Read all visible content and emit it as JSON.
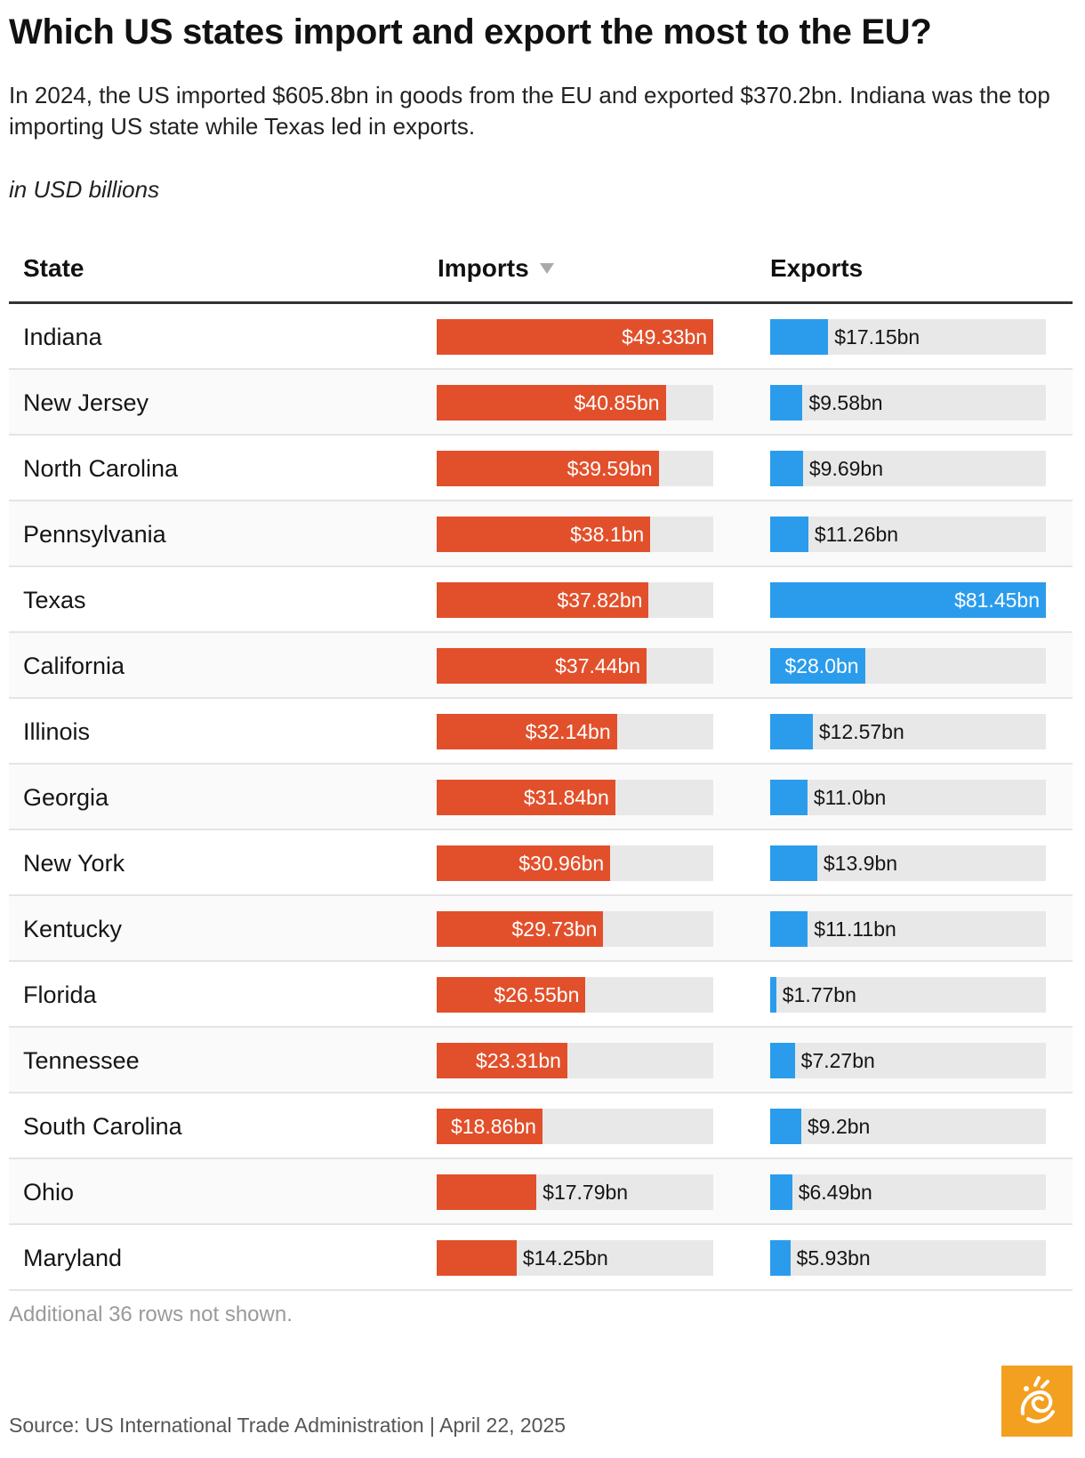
{
  "header": {
    "title": "Which US states import and export the most to the EU?",
    "subtitle": "In 2024, the US imported $605.8bn in goods from the EU and exported $370.2bn. Indiana was the top importing US state while Texas led in exports.",
    "units": "in USD billions"
  },
  "columns": {
    "state": "State",
    "imports": "Imports",
    "exports": "Exports",
    "sort_icon": "sort-descending-icon"
  },
  "colors": {
    "imports": "#e1502b",
    "exports": "#2b9cec",
    "track": "#e8e8e8",
    "logo": "#f3a020"
  },
  "chart_data": {
    "type": "table",
    "title": "Which US states import and export the most to the EU?",
    "units": "USD billions",
    "categories": [
      "Indiana",
      "New Jersey",
      "North Carolina",
      "Pennsylvania",
      "Texas",
      "California",
      "Illinois",
      "Georgia",
      "New York",
      "Kentucky",
      "Florida",
      "Tennessee",
      "South Carolina",
      "Ohio",
      "Maryland"
    ],
    "series": [
      {
        "name": "Imports",
        "max": 49.33,
        "values": [
          49.33,
          40.85,
          39.59,
          38.1,
          37.82,
          37.44,
          32.14,
          31.84,
          30.96,
          29.73,
          26.55,
          23.31,
          18.86,
          17.79,
          14.25
        ],
        "labels": [
          "$49.33bn",
          "$40.85bn",
          "$39.59bn",
          "$38.1bn",
          "$37.82bn",
          "$37.44bn",
          "$32.14bn",
          "$31.84bn",
          "$30.96bn",
          "$29.73bn",
          "$26.55bn",
          "$23.31bn",
          "$18.86bn",
          "$17.79bn",
          "$14.25bn"
        ]
      },
      {
        "name": "Exports",
        "max": 81.45,
        "values": [
          17.15,
          9.58,
          9.69,
          11.26,
          81.45,
          28.0,
          12.57,
          11.0,
          13.9,
          11.11,
          1.77,
          7.27,
          9.2,
          6.49,
          5.93
        ],
        "labels": [
          "$17.15bn",
          "$9.58bn",
          "$9.69bn",
          "$11.26bn",
          "$81.45bn",
          "$28.0bn",
          "$12.57bn",
          "$11.0bn",
          "$13.9bn",
          "$11.11bn",
          "$1.77bn",
          "$7.27bn",
          "$9.2bn",
          "$6.49bn",
          "$5.93bn"
        ]
      }
    ]
  },
  "footer": {
    "note": "Additional 36 rows not shown.",
    "source": "Source: US International Trade Administration | April 22, 2025",
    "logo_icon": "al-jazeera-logo-icon"
  }
}
